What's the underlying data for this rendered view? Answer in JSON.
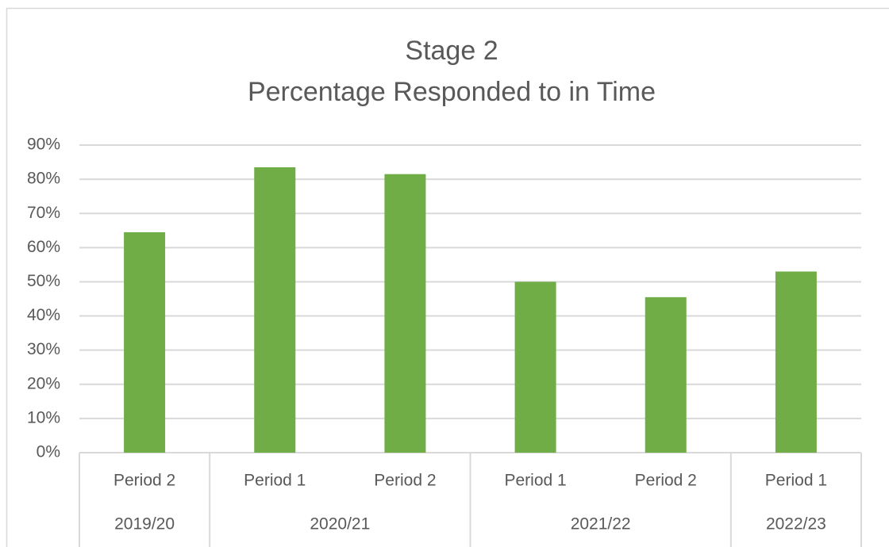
{
  "chart_data": {
    "type": "bar",
    "title": [
      "Stage 2",
      "Percentage Responded to in Time"
    ],
    "categories": [
      "Period 2",
      "Period 1",
      "Period 2",
      "Period 1",
      "Period 2",
      "Period 1"
    ],
    "groups": [
      {
        "label": "2019/20",
        "size": 1
      },
      {
        "label": "2020/21",
        "size": 2
      },
      {
        "label": "2021/22",
        "size": 2
      },
      {
        "label": "2022/23",
        "size": 1
      }
    ],
    "values": [
      64.5,
      83.5,
      81.5,
      50,
      45.5,
      53
    ],
    "color": "#70ad47",
    "ylim": [
      0,
      90
    ],
    "yticks": [
      {
        "value": 0,
        "label": "0%"
      },
      {
        "value": 10,
        "label": "10%"
      },
      {
        "value": 20,
        "label": "20%"
      },
      {
        "value": 30,
        "label": "30%"
      },
      {
        "value": 40,
        "label": "40%"
      },
      {
        "value": 50,
        "label": "50%"
      },
      {
        "value": 60,
        "label": "60%"
      },
      {
        "value": 70,
        "label": "70%"
      },
      {
        "value": 80,
        "label": "80%"
      },
      {
        "value": 90,
        "label": "90%"
      }
    ],
    "grid": true
  }
}
